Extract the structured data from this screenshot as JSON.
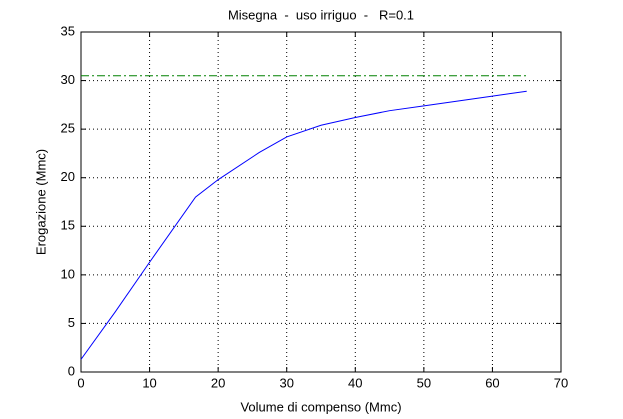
{
  "chart_data": {
    "type": "line",
    "title": "Misegna  -  uso irriguo  -   R=0.1",
    "xlabel": "Volume di compenso (Mmc)",
    "ylabel": "Erogazione (Mmc)",
    "series": [
      {
        "color": "#0000ff",
        "style": "solid",
        "x": [
          0,
          5,
          10,
          16.7,
          20,
          26,
          30,
          35,
          40,
          45,
          50,
          55,
          60,
          65
        ],
        "values": [
          1.3,
          6.2,
          11.3,
          18,
          19.8,
          22.6,
          24.2,
          25.4,
          26.2,
          26.9,
          27.4,
          27.9,
          28.4,
          28.9
        ]
      },
      {
        "color": "#008000",
        "style": "dashdot",
        "x": [
          0,
          65
        ],
        "values": [
          30.5,
          30.5
        ]
      }
    ],
    "xlim": [
      0,
      70
    ],
    "xticks": [
      0,
      10,
      20,
      30,
      40,
      50,
      60,
      70
    ],
    "ylim": [
      0,
      35
    ],
    "yticks": [
      0,
      5,
      10,
      15,
      20,
      25,
      30,
      35
    ],
    "grid": true
  }
}
